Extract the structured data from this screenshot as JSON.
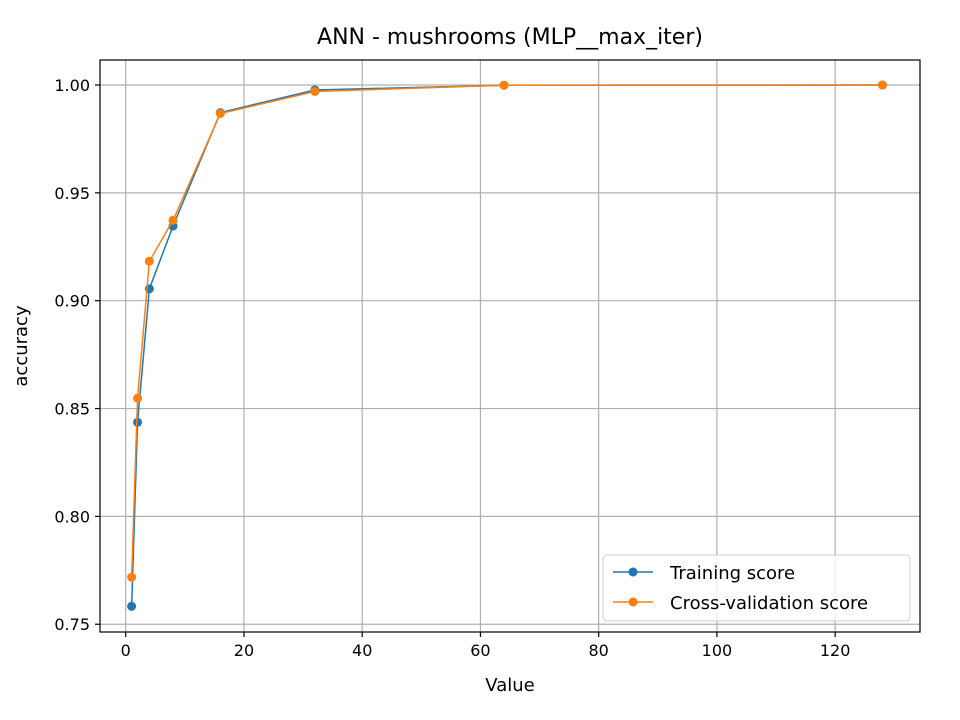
{
  "chart_data": {
    "type": "line",
    "title": "ANN - mushrooms (MLP__max_iter)",
    "xlabel": "Value",
    "ylabel": "accuracy",
    "xlim": [
      -4.35,
      134.35
    ],
    "ylim": [
      0.7464,
      1.0116
    ],
    "xticks": [
      0,
      20,
      40,
      60,
      80,
      100,
      120
    ],
    "xtick_labels": [
      "0",
      "20",
      "40",
      "60",
      "80",
      "100",
      "120"
    ],
    "yticks": [
      0.75,
      0.8,
      0.85,
      0.9,
      0.95,
      1.0
    ],
    "ytick_labels": [
      "0.75",
      "0.80",
      "0.85",
      "0.90",
      "0.95",
      "1.00"
    ],
    "grid": true,
    "legend_position": "lower-right",
    "x": [
      1,
      2,
      4,
      8,
      16,
      32,
      64,
      128
    ],
    "series": [
      {
        "name": "Training score",
        "color": "#1f77b4",
        "values": [
          0.7583,
          0.8436,
          0.9055,
          0.9346,
          0.9872,
          0.9977,
          0.9999,
          1.0
        ]
      },
      {
        "name": "Cross-validation score",
        "color": "#ff7f0e",
        "values": [
          0.7718,
          0.8548,
          0.9183,
          0.9373,
          0.9868,
          0.997,
          0.9999,
          1.0
        ]
      }
    ]
  }
}
